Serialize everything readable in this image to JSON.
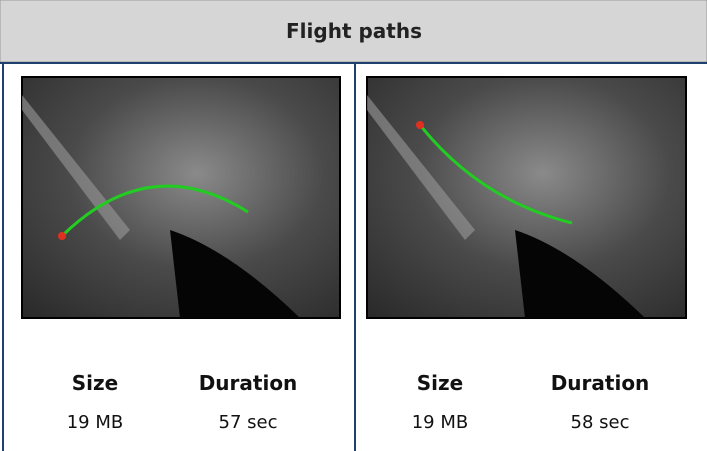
{
  "header": {
    "title": "Flight paths"
  },
  "cells": [
    {
      "size_label": "Size",
      "size": "19 MB",
      "duration_label": "Duration",
      "duration": "57 sec"
    },
    {
      "size_label": "Size",
      "size": "19 MB",
      "duration_label": "Duration",
      "duration": "58 sec"
    }
  ]
}
